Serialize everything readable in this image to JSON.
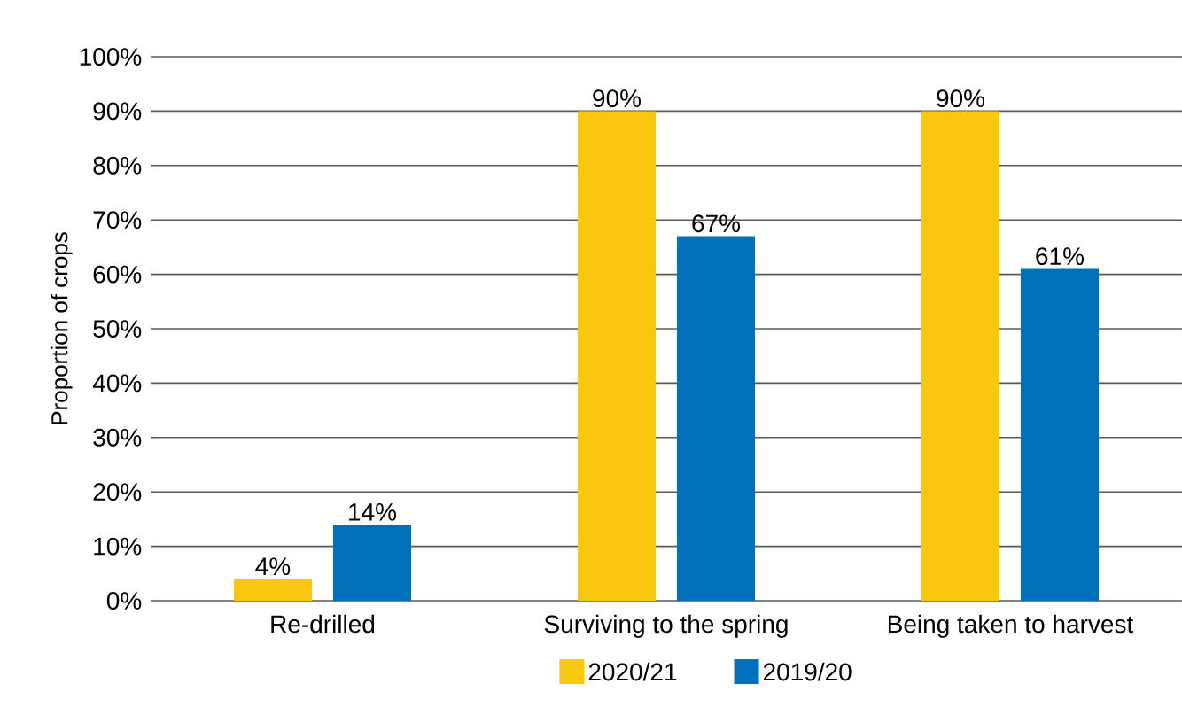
{
  "chart_data": {
    "type": "bar",
    "ylabel": "Proportion of crops",
    "categories": [
      "Re-drilled",
      "Surviving to the spring",
      "Being taken to harvest"
    ],
    "series": [
      {
        "name": "2020/21",
        "color": "#f9c80e",
        "values": [
          4,
          90,
          90
        ],
        "value_labels": [
          "4%",
          "90%",
          "90%"
        ]
      },
      {
        "name": "2019/20",
        "color": "#0070bb",
        "values": [
          14,
          67,
          61
        ],
        "value_labels": [
          "14%",
          "67%",
          "61%"
        ]
      }
    ],
    "ylim": [
      0,
      100
    ],
    "yticks": [
      {
        "value": 0,
        "label": "0%"
      },
      {
        "value": 10,
        "label": "10%"
      },
      {
        "value": 20,
        "label": "20%"
      },
      {
        "value": 30,
        "label": "30%"
      },
      {
        "value": 40,
        "label": "40%"
      },
      {
        "value": 50,
        "label": "50%"
      },
      {
        "value": 60,
        "label": "60%"
      },
      {
        "value": 70,
        "label": "70%"
      },
      {
        "value": 80,
        "label": "80%"
      },
      {
        "value": 90,
        "label": "90%"
      },
      {
        "value": 100,
        "label": "100%"
      }
    ],
    "grid": "y",
    "legend": "bottom"
  }
}
